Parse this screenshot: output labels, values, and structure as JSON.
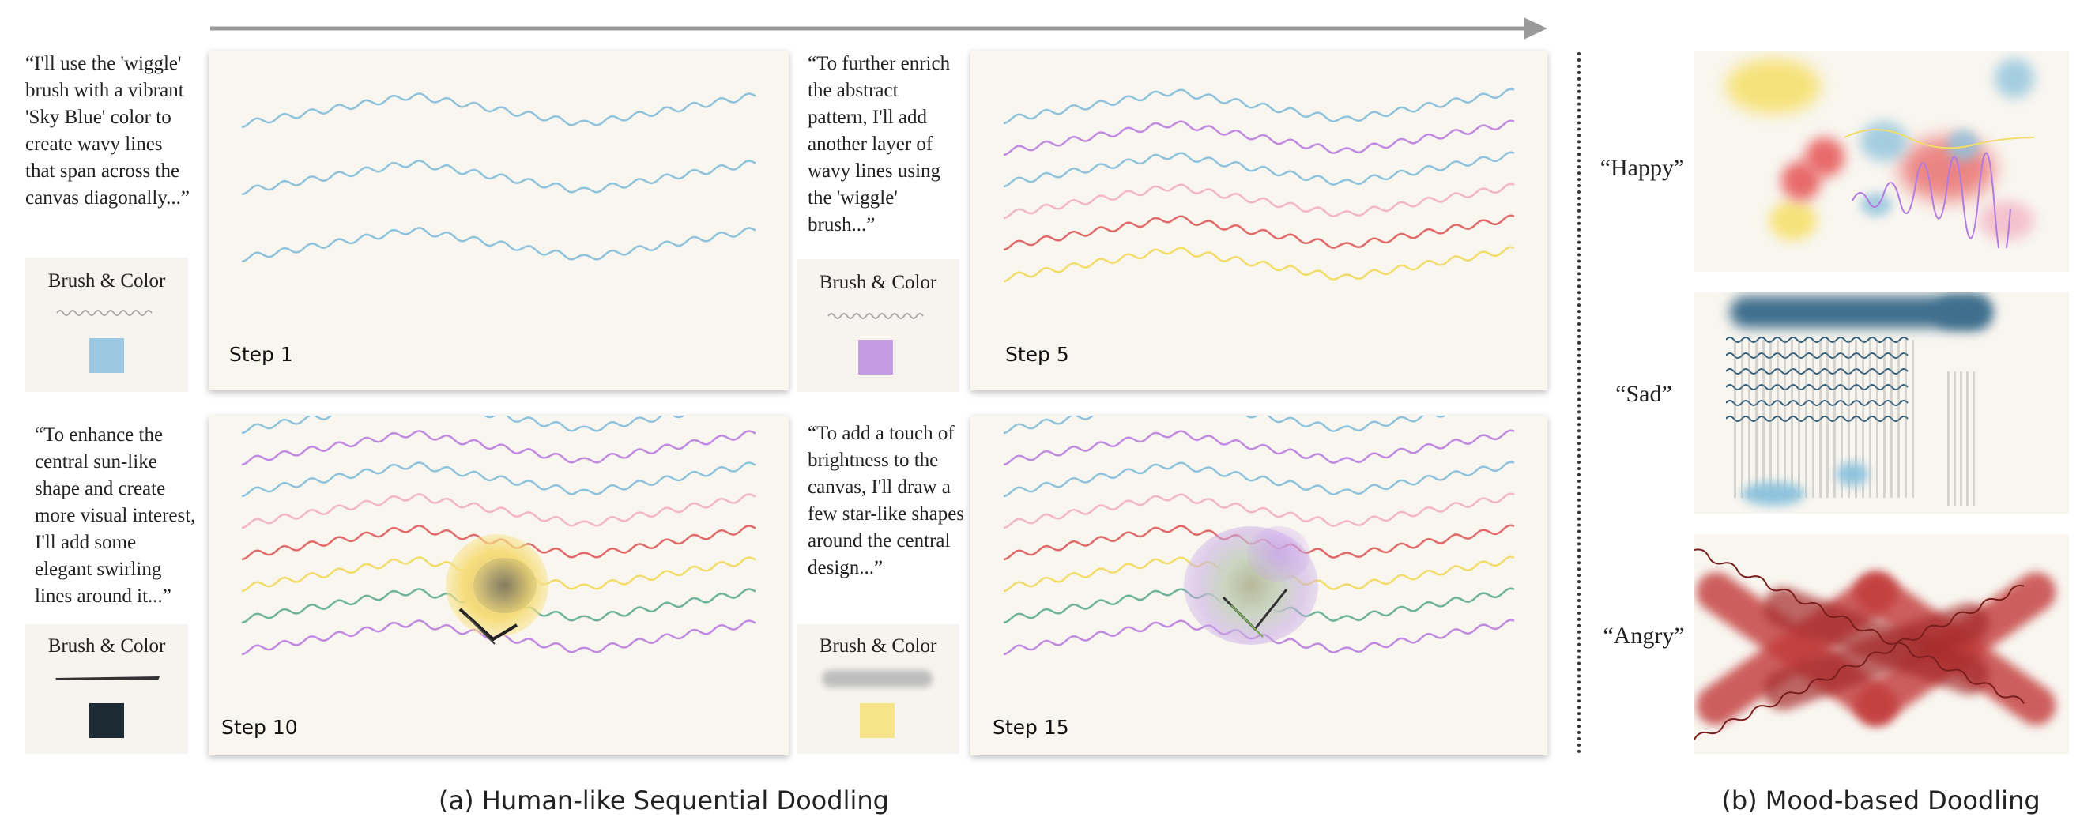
{
  "quotes": {
    "q1": "“I'll use the 'wiggle'\nbrush with a vibrant\n'Sky Blue' color to\ncreate wavy lines\nthat span across the\ncanvas diagonally...”",
    "q5": "“To further enrich\nthe abstract\npattern, I'll add\nanother layer of\nwavy lines using\nthe 'wiggle'\nbrush...”",
    "q10": "“To enhance the\ncentral sun-like\nshape and create\nmore visual interest,\nI'll add some\nelegant swirling\nlines around it...”",
    "q15": "“To add a touch of\nbrightness to the\ncanvas, I'll draw a\nfew star-like shapes\naround the central\ndesign...”"
  },
  "brush_label": "Brush & Color",
  "brush_colors": {
    "b1": "#9ac8e0",
    "b5": "#c59be6",
    "b10": "#1b2a33",
    "b15": "#f7e58c"
  },
  "steps": {
    "s1": "Step 1",
    "s5": "Step 5",
    "s10": "Step 10",
    "s15": "Step 15"
  },
  "moods": {
    "happy": "“Happy”",
    "sad": "“Sad”",
    "angry": "“Angry”"
  },
  "captions": {
    "a": "(a) Human-like Sequential Doodling",
    "b": "(b) Mood-based Doodling"
  },
  "wave_colors": [
    "#8fc3dc",
    "#c08ae0",
    "#8fc3dc",
    "#f2b6c6",
    "#e06a6a",
    "#f2dc6a",
    "#6fb39a",
    "#c08ae0"
  ]
}
